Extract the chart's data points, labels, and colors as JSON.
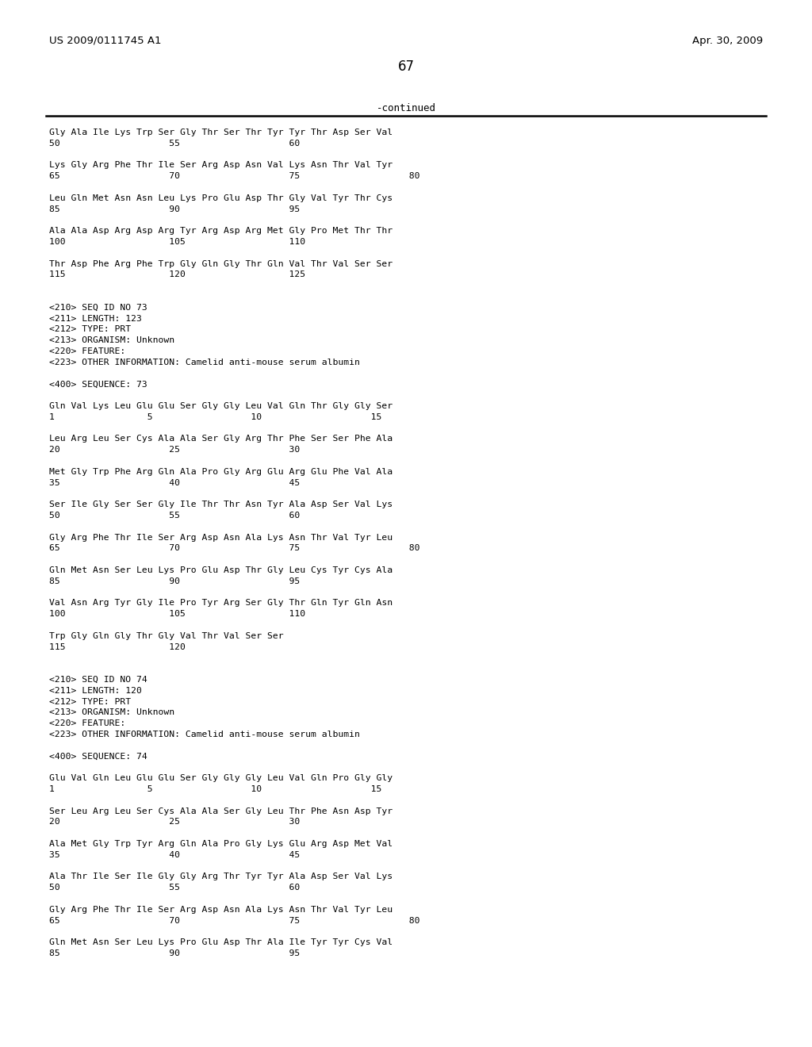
{
  "header_left": "US 2009/0111745 A1",
  "header_right": "Apr. 30, 2009",
  "page_number": "67",
  "continued_label": "-continued",
  "background_color": "#ffffff",
  "text_color": "#000000",
  "content_lines": [
    "Gly Ala Ile Lys Trp Ser Gly Thr Ser Thr Tyr Tyr Thr Asp Ser Val",
    "50                    55                    60",
    "",
    "Lys Gly Arg Phe Thr Ile Ser Arg Asp Asn Val Lys Asn Thr Val Tyr",
    "65                    70                    75                    80",
    "",
    "Leu Gln Met Asn Asn Leu Lys Pro Glu Asp Thr Gly Val Tyr Thr Cys",
    "85                    90                    95",
    "",
    "Ala Ala Asp Arg Asp Arg Tyr Arg Asp Arg Met Gly Pro Met Thr Thr",
    "100                   105                   110",
    "",
    "Thr Asp Phe Arg Phe Trp Gly Gln Gly Thr Gln Val Thr Val Ser Ser",
    "115                   120                   125",
    "",
    "",
    "<210> SEQ ID NO 73",
    "<211> LENGTH: 123",
    "<212> TYPE: PRT",
    "<213> ORGANISM: Unknown",
    "<220> FEATURE:",
    "<223> OTHER INFORMATION: Camelid anti-mouse serum albumin",
    "",
    "<400> SEQUENCE: 73",
    "",
    "Gln Val Lys Leu Glu Glu Ser Gly Gly Leu Val Gln Thr Gly Gly Ser",
    "1                 5                  10                    15",
    "",
    "Leu Arg Leu Ser Cys Ala Ala Ser Gly Arg Thr Phe Ser Ser Phe Ala",
    "20                    25                    30",
    "",
    "Met Gly Trp Phe Arg Gln Ala Pro Gly Arg Glu Arg Glu Phe Val Ala",
    "35                    40                    45",
    "",
    "Ser Ile Gly Ser Ser Gly Ile Thr Thr Asn Tyr Ala Asp Ser Val Lys",
    "50                    55                    60",
    "",
    "Gly Arg Phe Thr Ile Ser Arg Asp Asn Ala Lys Asn Thr Val Tyr Leu",
    "65                    70                    75                    80",
    "",
    "Gln Met Asn Ser Leu Lys Pro Glu Asp Thr Gly Leu Cys Tyr Cys Ala",
    "85                    90                    95",
    "",
    "Val Asn Arg Tyr Gly Ile Pro Tyr Arg Ser Gly Thr Gln Tyr Gln Asn",
    "100                   105                   110",
    "",
    "Trp Gly Gln Gly Thr Gly Val Thr Val Ser Ser",
    "115                   120",
    "",
    "",
    "<210> SEQ ID NO 74",
    "<211> LENGTH: 120",
    "<212> TYPE: PRT",
    "<213> ORGANISM: Unknown",
    "<220> FEATURE:",
    "<223> OTHER INFORMATION: Camelid anti-mouse serum albumin",
    "",
    "<400> SEQUENCE: 74",
    "",
    "Glu Val Gln Leu Glu Glu Ser Gly Gly Gly Leu Val Gln Pro Gly Gly",
    "1                 5                  10                    15",
    "",
    "Ser Leu Arg Leu Ser Cys Ala Ala Ser Gly Leu Thr Phe Asn Asp Tyr",
    "20                    25                    30",
    "",
    "Ala Met Gly Trp Tyr Arg Gln Ala Pro Gly Lys Glu Arg Asp Met Val",
    "35                    40                    45",
    "",
    "Ala Thr Ile Ser Ile Gly Gly Arg Thr Tyr Tyr Ala Asp Ser Val Lys",
    "50                    55                    60",
    "",
    "Gly Arg Phe Thr Ile Ser Arg Asp Asn Ala Lys Asn Thr Val Tyr Leu",
    "65                    70                    75                    80",
    "",
    "Gln Met Asn Ser Leu Lys Pro Glu Asp Thr Ala Ile Tyr Tyr Cys Val",
    "85                    90                    95"
  ]
}
